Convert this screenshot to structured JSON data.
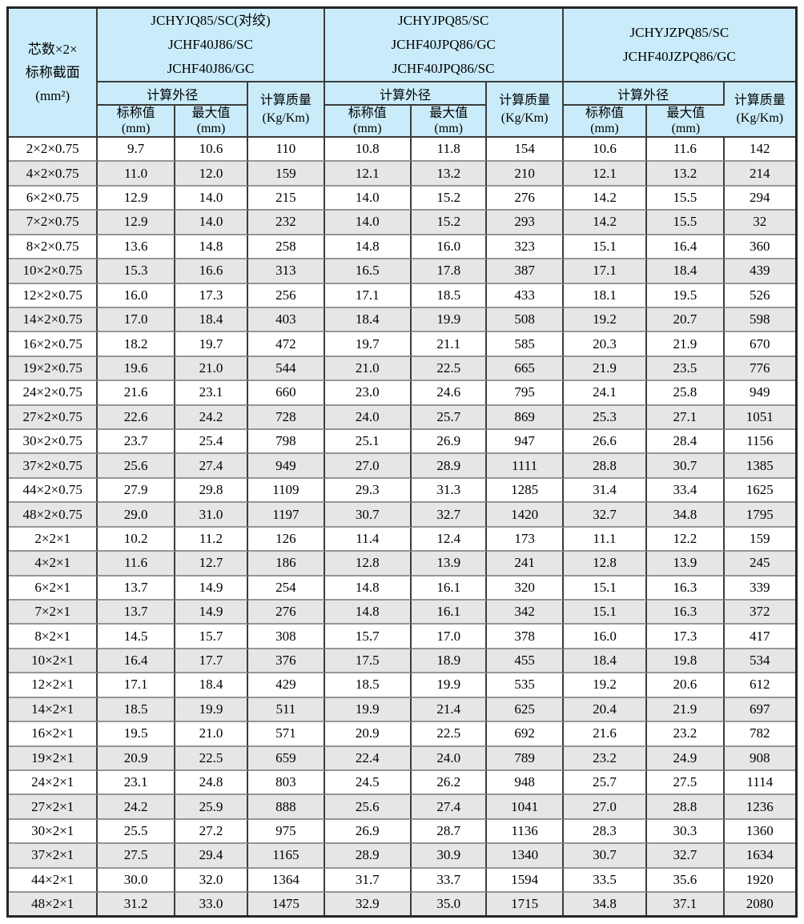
{
  "colors": {
    "header_bg": "#caecfa",
    "alt_row_bg": "#e6e6e4",
    "frame_border": "#262626"
  },
  "table": {
    "corner_lines": [
      "芯数×2×",
      "标称截面",
      "(mm²)"
    ],
    "groups": [
      {
        "models": [
          "JCHYJQ85/SC(对绞)",
          "JCHF40J86/SC",
          "JCHF40J86/GC"
        ]
      },
      {
        "models": [
          "JCHYJPQ85/SC",
          "JCHF40JPQ86/GC",
          "JCHF40JPQ86/SC"
        ]
      },
      {
        "models": [
          "JCHYJZPQ85/SC",
          "JCHF40JZPQ86/GC"
        ]
      }
    ],
    "subheaders": {
      "outer_diameter": "计算外径",
      "nominal_lines": [
        "标称值",
        "(mm)"
      ],
      "max_lines": [
        "最大值",
        "(mm)"
      ],
      "mass_lines": [
        "计算质量",
        "(Kg/Km)"
      ]
    },
    "rows": [
      [
        "2×2×0.75",
        "9.7",
        "10.6",
        "110",
        "10.8",
        "11.8",
        "154",
        "10.6",
        "11.6",
        "142"
      ],
      [
        "4×2×0.75",
        "11.0",
        "12.0",
        "159",
        "12.1",
        "13.2",
        "210",
        "12.1",
        "13.2",
        "214"
      ],
      [
        "6×2×0.75",
        "12.9",
        "14.0",
        "215",
        "14.0",
        "15.2",
        "276",
        "14.2",
        "15.5",
        "294"
      ],
      [
        "7×2×0.75",
        "12.9",
        "14.0",
        "232",
        "14.0",
        "15.2",
        "293",
        "14.2",
        "15.5",
        "32"
      ],
      [
        "8×2×0.75",
        "13.6",
        "14.8",
        "258",
        "14.8",
        "16.0",
        "323",
        "15.1",
        "16.4",
        "360"
      ],
      [
        "10×2×0.75",
        "15.3",
        "16.6",
        "313",
        "16.5",
        "17.8",
        "387",
        "17.1",
        "18.4",
        "439"
      ],
      [
        "12×2×0.75",
        "16.0",
        "17.3",
        "256",
        "17.1",
        "18.5",
        "433",
        "18.1",
        "19.5",
        "526"
      ],
      [
        "14×2×0.75",
        "17.0",
        "18.4",
        "403",
        "18.4",
        "19.9",
        "508",
        "19.2",
        "20.7",
        "598"
      ],
      [
        "16×2×0.75",
        "18.2",
        "19.7",
        "472",
        "19.7",
        "21.1",
        "585",
        "20.3",
        "21.9",
        "670"
      ],
      [
        "19×2×0.75",
        "19.6",
        "21.0",
        "544",
        "21.0",
        "22.5",
        "665",
        "21.9",
        "23.5",
        "776"
      ],
      [
        "24×2×0.75",
        "21.6",
        "23.1",
        "660",
        "23.0",
        "24.6",
        "795",
        "24.1",
        "25.8",
        "949"
      ],
      [
        "27×2×0.75",
        "22.6",
        "24.2",
        "728",
        "24.0",
        "25.7",
        "869",
        "25.3",
        "27.1",
        "1051"
      ],
      [
        "30×2×0.75",
        "23.7",
        "25.4",
        "798",
        "25.1",
        "26.9",
        "947",
        "26.6",
        "28.4",
        "1156"
      ],
      [
        "37×2×0.75",
        "25.6",
        "27.4",
        "949",
        "27.0",
        "28.9",
        "1111",
        "28.8",
        "30.7",
        "1385"
      ],
      [
        "44×2×0.75",
        "27.9",
        "29.8",
        "1109",
        "29.3",
        "31.3",
        "1285",
        "31.4",
        "33.4",
        "1625"
      ],
      [
        "48×2×0.75",
        "29.0",
        "31.0",
        "1197",
        "30.7",
        "32.7",
        "1420",
        "32.7",
        "34.8",
        "1795"
      ],
      [
        "2×2×1",
        "10.2",
        "11.2",
        "126",
        "11.4",
        "12.4",
        "173",
        "11.1",
        "12.2",
        "159"
      ],
      [
        "4×2×1",
        "11.6",
        "12.7",
        "186",
        "12.8",
        "13.9",
        "241",
        "12.8",
        "13.9",
        "245"
      ],
      [
        "6×2×1",
        "13.7",
        "14.9",
        "254",
        "14.8",
        "16.1",
        "320",
        "15.1",
        "16.3",
        "339"
      ],
      [
        "7×2×1",
        "13.7",
        "14.9",
        "276",
        "14.8",
        "16.1",
        "342",
        "15.1",
        "16.3",
        "372"
      ],
      [
        "8×2×1",
        "14.5",
        "15.7",
        "308",
        "15.7",
        "17.0",
        "378",
        "16.0",
        "17.3",
        "417"
      ],
      [
        "10×2×1",
        "16.4",
        "17.7",
        "376",
        "17.5",
        "18.9",
        "455",
        "18.4",
        "19.8",
        "534"
      ],
      [
        "12×2×1",
        "17.1",
        "18.4",
        "429",
        "18.5",
        "19.9",
        "535",
        "19.2",
        "20.6",
        "612"
      ],
      [
        "14×2×1",
        "18.5",
        "19.9",
        "511",
        "19.9",
        "21.4",
        "625",
        "20.4",
        "21.9",
        "697"
      ],
      [
        "16×2×1",
        "19.5",
        "21.0",
        "571",
        "20.9",
        "22.5",
        "692",
        "21.6",
        "23.2",
        "782"
      ],
      [
        "19×2×1",
        "20.9",
        "22.5",
        "659",
        "22.4",
        "24.0",
        "789",
        "23.2",
        "24.9",
        "908"
      ],
      [
        "24×2×1",
        "23.1",
        "24.8",
        "803",
        "24.5",
        "26.2",
        "948",
        "25.7",
        "27.5",
        "1114"
      ],
      [
        "27×2×1",
        "24.2",
        "25.9",
        "888",
        "25.6",
        "27.4",
        "1041",
        "27.0",
        "28.8",
        "1236"
      ],
      [
        "30×2×1",
        "25.5",
        "27.2",
        "975",
        "26.9",
        "28.7",
        "1136",
        "28.3",
        "30.3",
        "1360"
      ],
      [
        "37×2×1",
        "27.5",
        "29.4",
        "1165",
        "28.9",
        "30.9",
        "1340",
        "30.7",
        "32.7",
        "1634"
      ],
      [
        "44×2×1",
        "30.0",
        "32.0",
        "1364",
        "31.7",
        "33.7",
        "1594",
        "33.5",
        "35.6",
        "1920"
      ],
      [
        "48×2×1",
        "31.2",
        "33.0",
        "1475",
        "32.9",
        "35.0",
        "1715",
        "34.8",
        "37.1",
        "2080"
      ]
    ]
  }
}
